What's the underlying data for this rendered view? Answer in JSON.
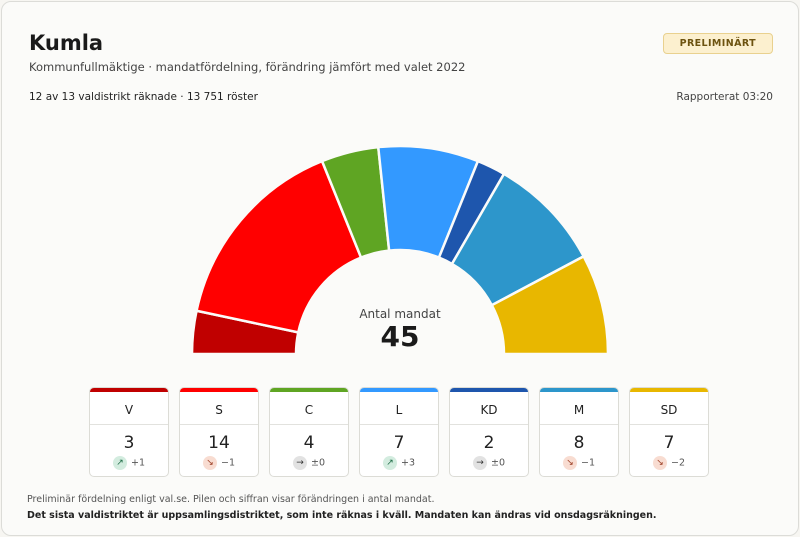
{
  "header": {
    "title": "Kumla",
    "subtitle": "Kommunfullmäktige · mandatfördelning, förändring jämfört med valet 2022",
    "badge": "PRELIMINÄRT",
    "meta": "12 av 13 valdistrikt räknade · 13 751 röster",
    "reported": "Rapporterat 03:20"
  },
  "center": {
    "label": "Antal mandat",
    "total": "45"
  },
  "chart_data": {
    "type": "parliament-hemicycle",
    "total_seats": 45,
    "parties": [
      {
        "abbr": "V",
        "seats": 3,
        "change": "+1",
        "trend": "up",
        "color": "#c00000"
      },
      {
        "abbr": "S",
        "seats": 14,
        "change": "−1",
        "trend": "down",
        "color": "#ff0000"
      },
      {
        "abbr": "C",
        "seats": 4,
        "change": "±0",
        "trend": "flat",
        "color": "#5fa523"
      },
      {
        "abbr": "L",
        "seats": 7,
        "change": "+3",
        "trend": "up",
        "color": "#3399ff"
      },
      {
        "abbr": "KD",
        "seats": 2,
        "change": "±0",
        "trend": "flat",
        "color": "#1e56ad"
      },
      {
        "abbr": "M",
        "seats": 8,
        "change": "−1",
        "trend": "down",
        "color": "#2d96cb"
      },
      {
        "abbr": "SD",
        "seats": 7,
        "change": "−2",
        "trend": "down",
        "color": "#e8b700"
      }
    ]
  },
  "footnotes": {
    "note": "Preliminär fördelning enligt val.se. Pilen och siffran visar förändringen i antal mandat.",
    "bold": "Det sista valdistriktet är uppsamlingsdistriktet, som inte räknas i kväll. Mandaten kan ändras vid onsdagsräkningen."
  }
}
